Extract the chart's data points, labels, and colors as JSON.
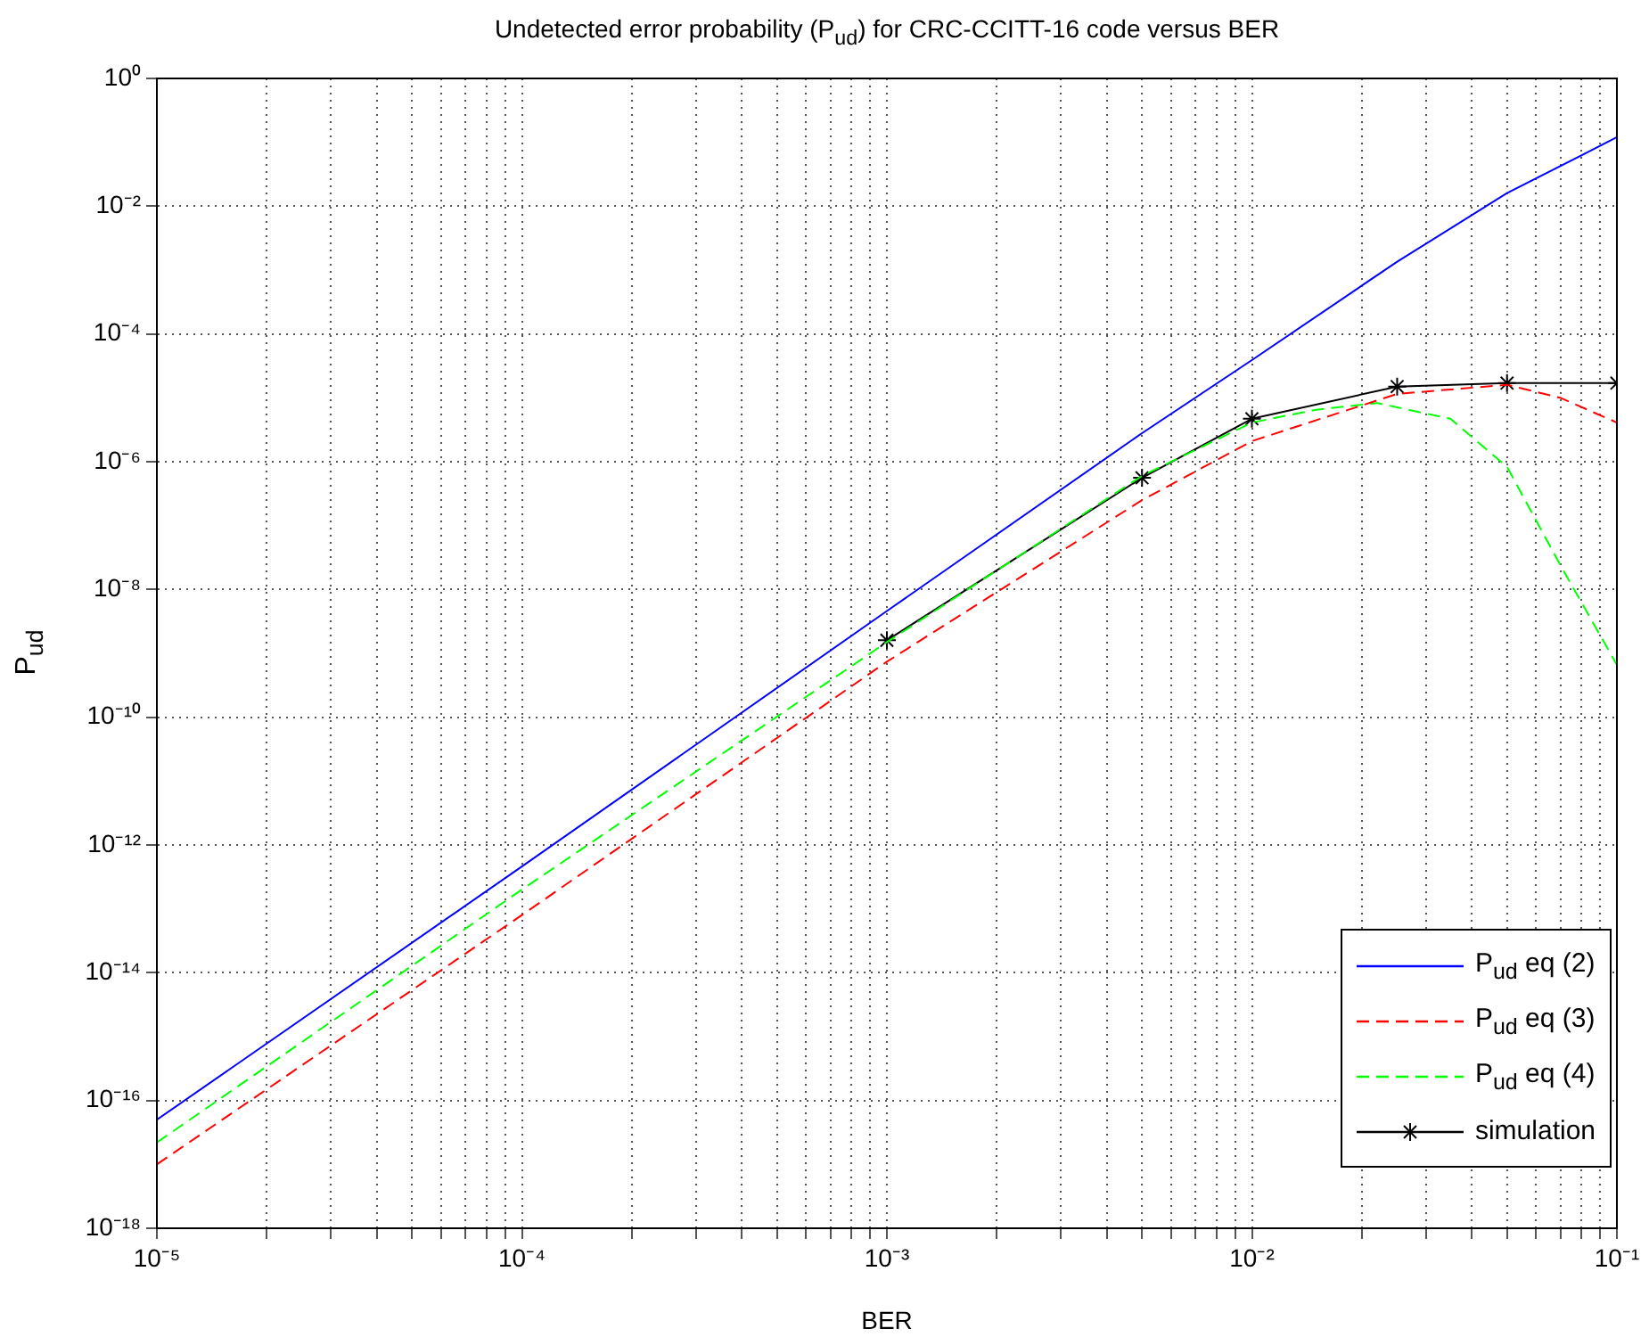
{
  "chart_data": {
    "type": "line",
    "title": "Undetected error probability (P$_{ud}$) for CRC-CCITT-16 code versus BER",
    "xlabel": "BER",
    "ylabel": "P$_{ud}$",
    "log": "xy",
    "grid": true,
    "legend": "bottom right",
    "xlim": [
      1e-05,
      0.1
    ],
    "ylim": [
      1e-18,
      1
    ],
    "xticks": [
      {
        "value": 1e-05,
        "label": "10⁻⁵"
      },
      {
        "value": 2e-05,
        "label": null
      },
      {
        "value": 3e-05,
        "label": null
      },
      {
        "value": 4e-05,
        "label": null
      },
      {
        "value": 5e-05,
        "label": null
      },
      {
        "value": 6e-05,
        "label": null
      },
      {
        "value": 7e-05,
        "label": null
      },
      {
        "value": 8e-05,
        "label": null
      },
      {
        "value": 9e-05,
        "label": null
      },
      {
        "value": 0.0001,
        "label": "10⁻⁴"
      },
      {
        "value": 0.0002,
        "label": null
      },
      {
        "value": 0.0003,
        "label": null
      },
      {
        "value": 0.0004,
        "label": null
      },
      {
        "value": 0.0005,
        "label": null
      },
      {
        "value": 0.0006,
        "label": null
      },
      {
        "value": 0.0007,
        "label": null
      },
      {
        "value": 0.0008,
        "label": null
      },
      {
        "value": 0.0009,
        "label": null
      },
      {
        "value": 0.001,
        "label": "10⁻³"
      },
      {
        "value": 0.002,
        "label": null
      },
      {
        "value": 0.003,
        "label": null
      },
      {
        "value": 0.004,
        "label": null
      },
      {
        "value": 0.005,
        "label": null
      },
      {
        "value": 0.006,
        "label": null
      },
      {
        "value": 0.007,
        "label": null
      },
      {
        "value": 0.008,
        "label": null
      },
      {
        "value": 0.009,
        "label": null
      },
      {
        "value": 0.01,
        "label": "10⁻²"
      },
      {
        "value": 0.02,
        "label": null
      },
      {
        "value": 0.03,
        "label": null
      },
      {
        "value": 0.04,
        "label": null
      },
      {
        "value": 0.05,
        "label": null
      },
      {
        "value": 0.06,
        "label": null
      },
      {
        "value": 0.07,
        "label": null
      },
      {
        "value": 0.08,
        "label": null
      },
      {
        "value": 0.09,
        "label": null
      },
      {
        "value": 0.1,
        "label": "10⁻¹"
      }
    ],
    "yticks": [
      {
        "value": 1e-18,
        "label": "10⁻¹⁸"
      },
      {
        "value": 1e-16,
        "label": "10⁻¹⁶"
      },
      {
        "value": 1e-14,
        "label": "10⁻¹⁴"
      },
      {
        "value": 1e-12,
        "label": "10⁻¹²"
      },
      {
        "value": 1e-10,
        "label": "10⁻¹⁰"
      },
      {
        "value": 1e-08,
        "label": "10⁻⁸"
      },
      {
        "value": 1e-06,
        "label": "10⁻⁶"
      },
      {
        "value": 0.0001,
        "label": "10⁻⁴"
      },
      {
        "value": 0.01,
        "label": "10⁻²"
      },
      {
        "value": 1,
        "label": "10⁰"
      }
    ],
    "series": [
      {
        "name": "P$_{ud}$ eq (2)",
        "color": "#0000ff",
        "line_style": "solid",
        "marker": "none",
        "x": [
          1e-05,
          0.0001,
          0.001,
          0.005,
          0.01,
          0.025,
          0.05,
          0.1
        ],
        "values": [
          5e-17,
          4.6e-13,
          4.6e-09,
          2.8e-06,
          3.9e-05,
          0.00135,
          0.016,
          0.12
        ]
      },
      {
        "name": "P$_{ud}$ eq (3)",
        "color": "#ff0000",
        "line_style": "dashed",
        "marker": "none",
        "x": [
          1e-05,
          0.0001,
          0.001,
          0.005,
          0.01,
          0.025,
          0.05,
          0.07,
          0.1
        ],
        "values": [
          1e-17,
          8e-14,
          7.4e-10,
          2.5e-07,
          2.1e-06,
          1.15e-05,
          1.6e-05,
          1e-05,
          4.1e-06
        ]
      },
      {
        "name": "P$_{ud}$ eq (4)",
        "color": "#00ff00",
        "line_style": "dashed",
        "marker": "none",
        "x": [
          1e-05,
          0.0001,
          0.001,
          0.005,
          0.01,
          0.015,
          0.022,
          0.035,
          0.05,
          0.07,
          0.1
        ],
        "values": [
          2.2e-17,
          2e-13,
          1.5e-09,
          6e-07,
          4.1e-06,
          6.5e-06,
          8.3e-06,
          4.7e-06,
          8.3e-07,
          2.4e-08,
          6.6e-10
        ]
      },
      {
        "name": "simulation",
        "color": "#000000",
        "line_style": "solid",
        "marker": "cross",
        "x": [
          0.001,
          0.005,
          0.01,
          0.025,
          0.05,
          0.1
        ],
        "values": [
          1.6e-09,
          5.6e-07,
          4.7e-06,
          1.5e-05,
          1.7e-05,
          1.7e-05
        ]
      }
    ]
  }
}
